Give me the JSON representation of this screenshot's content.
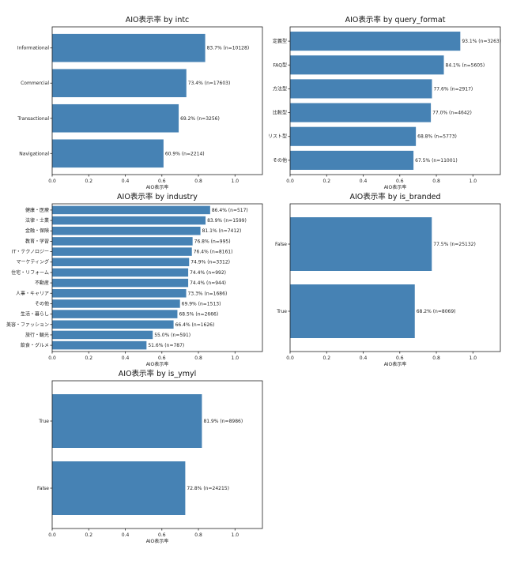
{
  "chart_data": [
    {
      "type": "bar",
      "orientation": "horizontal",
      "title": "AIO表示率 by intc",
      "xlabel": "AIO表示率",
      "xlim": [
        0,
        1.15
      ],
      "xticks": [
        "0.0",
        "0.2",
        "0.4",
        "0.6",
        "0.8",
        "1.0"
      ],
      "categories": [
        "Informational",
        "Commercial",
        "Transactional",
        "Navigational"
      ],
      "values": [
        0.837,
        0.734,
        0.692,
        0.609
      ],
      "labels": [
        "83.7% (n=10128)",
        "73.4% (n=17603)",
        "69.2% (n=3256)",
        "60.9% (n=2214)"
      ]
    },
    {
      "type": "bar",
      "orientation": "horizontal",
      "title": "AIO表示率 by query_format",
      "xlabel": "AIO表示率",
      "xlim": [
        0,
        1.15
      ],
      "xticks": [
        "0.0",
        "0.2",
        "0.4",
        "0.6",
        "0.8",
        "1.0"
      ],
      "categories": [
        "定義型",
        "FAQ型",
        "方法型",
        "比較型",
        "リスト型",
        "その他"
      ],
      "values": [
        0.931,
        0.841,
        0.776,
        0.77,
        0.688,
        0.675
      ],
      "labels": [
        "93.1% (n=3263)",
        "84.1% (n=5605)",
        "77.6% (n=2917)",
        "77.0% (n=4642)",
        "68.8% (n=5773)",
        "67.5% (n=11001)"
      ]
    },
    {
      "type": "bar",
      "orientation": "horizontal",
      "title": "AIO表示率 by industry",
      "xlabel": "AIO表示率",
      "xlim": [
        0,
        1.15
      ],
      "xticks": [
        "0.0",
        "0.2",
        "0.4",
        "0.6",
        "0.8",
        "1.0"
      ],
      "categories": [
        "健康・医療",
        "法律・士業",
        "金融・保険",
        "教育・学習",
        "IT・テクノロジー",
        "マーケティング",
        "住宅・リフォーム",
        "不動産",
        "人事・キャリア",
        "その他",
        "生活・暮らし",
        "美容・ファッション",
        "旅行・観光",
        "飲食・グルメ"
      ],
      "values": [
        0.864,
        0.839,
        0.811,
        0.768,
        0.764,
        0.749,
        0.744,
        0.744,
        0.733,
        0.699,
        0.685,
        0.664,
        0.55,
        0.516
      ],
      "labels": [
        "86.4% (n=517)",
        "83.9% (n=1599)",
        "81.1% (n=7412)",
        "76.8% (n=995)",
        "76.4% (n=8161)",
        "74.9% (n=3312)",
        "74.4% (n=992)",
        "74.4% (n=944)",
        "73.3% (n=1686)",
        "69.9% (n=1513)",
        "68.5% (n=2666)",
        "66.4% (n=1626)",
        "55.0% (n=591)",
        "51.6% (n=787)"
      ]
    },
    {
      "type": "bar",
      "orientation": "horizontal",
      "title": "AIO表示率 by is_branded",
      "xlabel": "AIO表示率",
      "xlim": [
        0,
        1.15
      ],
      "xticks": [
        "0.0",
        "0.2",
        "0.4",
        "0.6",
        "0.8",
        "1.0"
      ],
      "categories": [
        "False",
        "True"
      ],
      "values": [
        0.775,
        0.682
      ],
      "labels": [
        "77.5% (n=25132)",
        "68.2% (n=8069)"
      ]
    },
    {
      "type": "bar",
      "orientation": "horizontal",
      "title": "AIO表示率 by is_ymyl",
      "xlabel": "AIO表示率",
      "xlim": [
        0,
        1.15
      ],
      "xticks": [
        "0.0",
        "0.2",
        "0.4",
        "0.6",
        "0.8",
        "1.0"
      ],
      "categories": [
        "True",
        "False"
      ],
      "values": [
        0.819,
        0.728
      ],
      "labels": [
        "81.9% (n=8986)",
        "72.8% (n=24215)"
      ]
    }
  ],
  "colors": {
    "bar": "#4682b4"
  }
}
